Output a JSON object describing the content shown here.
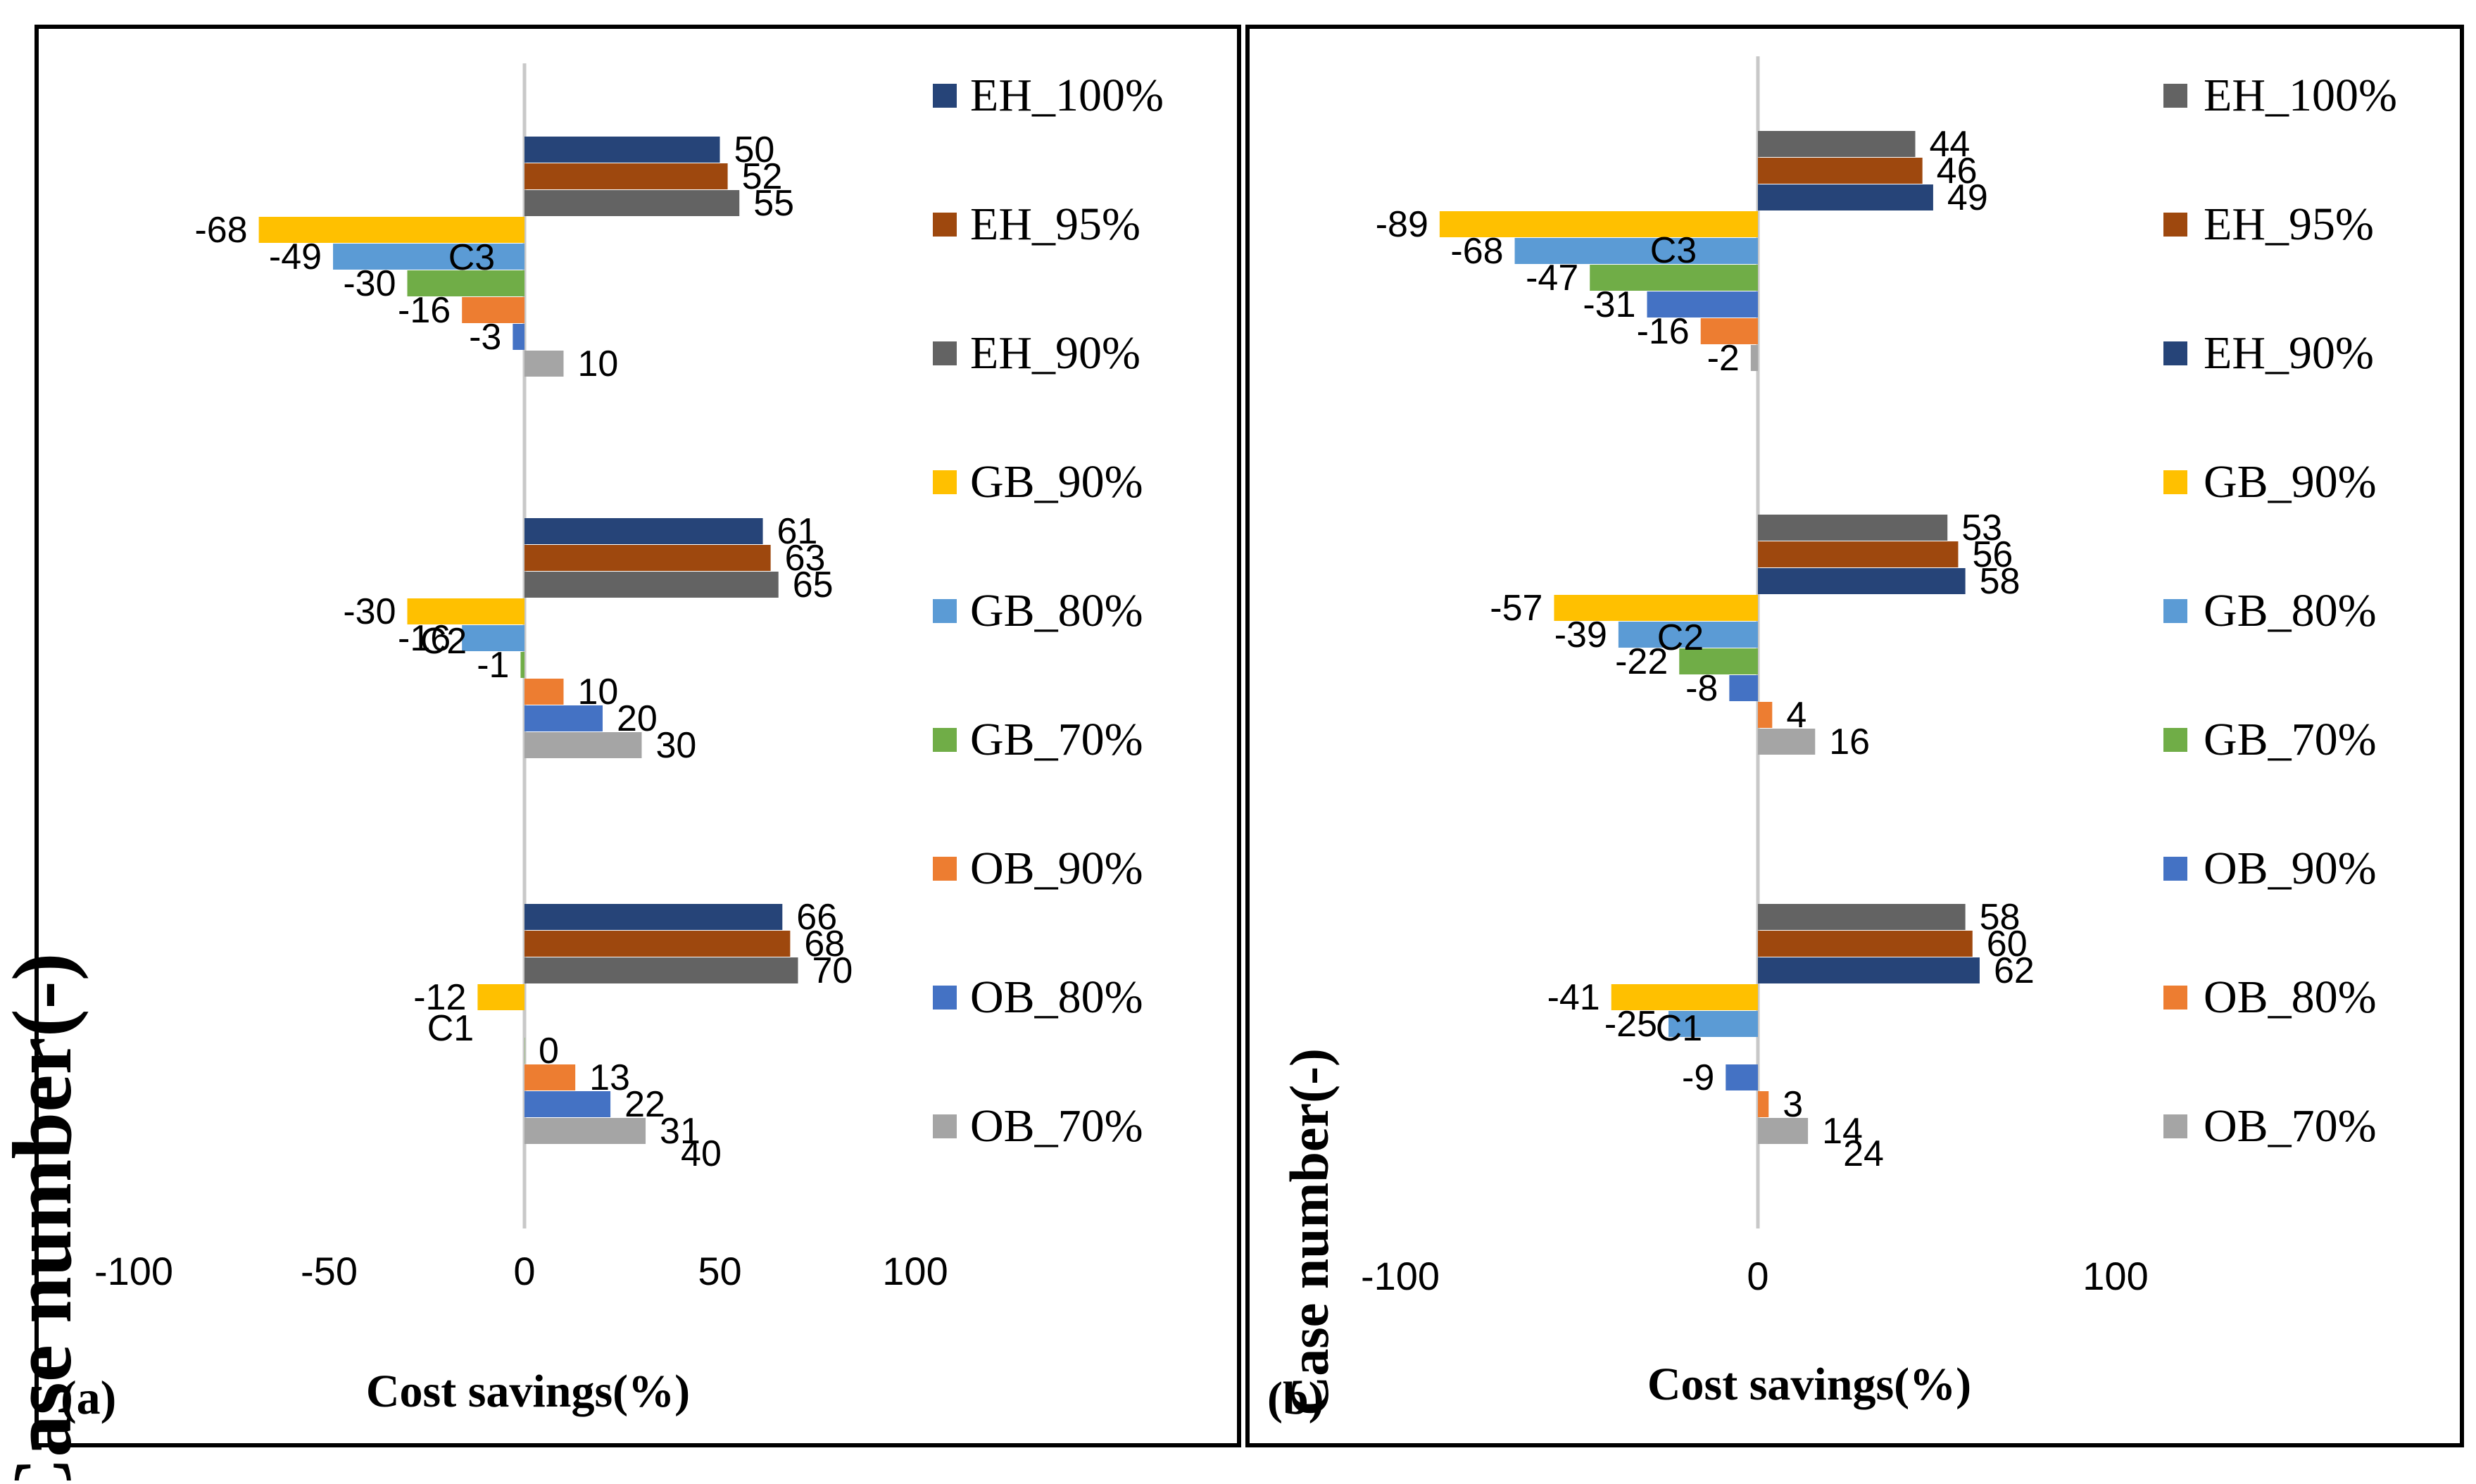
{
  "figure": {
    "panels": [
      {
        "panel_label": "(a)",
        "xlabel": "Cost savings(%)",
        "ylabel": "Case number(-)"
      },
      {
        "panel_label": "(b)",
        "xlabel": "Cost savings(%)",
        "ylabel": "Case number(-)"
      }
    ]
  },
  "chart_data": [
    {
      "type": "bar",
      "orientation": "horizontal",
      "panel": "(a)",
      "xlabel": "Cost savings(%)",
      "ylabel": "Case number(-)",
      "xlim": [
        -100,
        100
      ],
      "xticks": [
        -100,
        -50,
        0,
        50,
        100
      ],
      "grid": false,
      "legend_position": "right",
      "legend": [
        "EH_100%",
        "EH_95%",
        "EH_90%",
        "GB_90%",
        "GB_80%",
        "GB_70%",
        "OB_90%",
        "OB_80%",
        "OB_70%"
      ],
      "categories": [
        "C1",
        "C2",
        "C3"
      ],
      "series": [
        {
          "name": "EH_100%",
          "color": "#264478",
          "values": [
            66,
            61,
            50
          ]
        },
        {
          "name": "EH_95%",
          "color": "#9E480E",
          "values": [
            68,
            63,
            52
          ]
        },
        {
          "name": "EH_90%",
          "color": "#636363",
          "values": [
            70,
            65,
            55
          ]
        },
        {
          "name": "GB_90%",
          "color": "#FFC000",
          "values": [
            -12,
            -30,
            -68
          ]
        },
        {
          "name": "GB_80%",
          "color": "#5B9BD5",
          "values": [
            null,
            -16,
            -49
          ]
        },
        {
          "name": "GB_70%",
          "color": "#70AD47",
          "values": [
            0,
            -1,
            -30
          ]
        },
        {
          "name": "OB_90%",
          "color": "#ED7D31",
          "values": [
            13,
            10,
            -16
          ]
        },
        {
          "name": "OB_80%",
          "color": "#4472C4",
          "values": [
            22,
            20,
            -3
          ]
        },
        {
          "name": "OB_70%",
          "color": "#A5A5A5",
          "values": [
            31,
            30,
            10
          ]
        }
      ],
      "extra_labels": [
        {
          "category": "C1",
          "series": "OB_70%",
          "text": "40"
        }
      ]
    },
    {
      "type": "bar",
      "orientation": "horizontal",
      "panel": "(b)",
      "xlabel": "Cost savings(%)",
      "ylabel": "Case number(-)",
      "xlim": [
        -100,
        100
      ],
      "xticks": [
        -100,
        0,
        100
      ],
      "grid": false,
      "legend_position": "right",
      "legend": [
        "EH_100%",
        "EH_95%",
        "EH_90%",
        "GB_90%",
        "GB_80%",
        "GB_70%",
        "OB_90%",
        "OB_80%",
        "OB_70%"
      ],
      "categories": [
        "C1",
        "C2",
        "C3"
      ],
      "series": [
        {
          "name": "EH_100%",
          "color": "#636363",
          "values": [
            58,
            53,
            44
          ]
        },
        {
          "name": "EH_95%",
          "color": "#9E480E",
          "values": [
            60,
            56,
            46
          ]
        },
        {
          "name": "EH_90%",
          "color": "#264478",
          "values": [
            62,
            58,
            49
          ]
        },
        {
          "name": "GB_90%",
          "color": "#FFC000",
          "values": [
            -41,
            -57,
            -89
          ]
        },
        {
          "name": "GB_80%",
          "color": "#5B9BD5",
          "values": [
            -25,
            -39,
            -68
          ]
        },
        {
          "name": "GB_70%",
          "color": "#70AD47",
          "values": [
            null,
            -22,
            -47
          ]
        },
        {
          "name": "OB_90%",
          "color": "#4472C4",
          "values": [
            -9,
            -8,
            -31
          ]
        },
        {
          "name": "OB_80%",
          "color": "#ED7D31",
          "values": [
            3,
            4,
            -16
          ]
        },
        {
          "name": "OB_70%",
          "color": "#A5A5A5",
          "values": [
            14,
            16,
            -2
          ]
        }
      ],
      "extra_labels": [
        {
          "category": "C1",
          "series": "OB_70%",
          "text": "24"
        }
      ]
    }
  ]
}
